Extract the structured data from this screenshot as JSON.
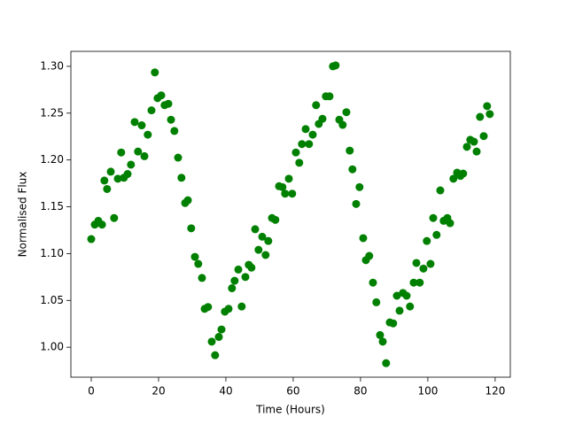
{
  "chart_data": {
    "type": "scatter",
    "xlabel": "Time (Hours)",
    "ylabel": "Normalised Flux",
    "color": "#008000",
    "x": [
      0,
      1.05,
      2.1,
      3.2,
      3.9,
      4.7,
      5.8,
      6.8,
      7.9,
      8.9,
      9.7,
      10.8,
      11.8,
      12.9,
      13.9,
      15,
      15.8,
      16.8,
      17.9,
      18.9,
      19.7,
      20.8,
      21.8,
      22.9,
      23.7,
      24.7,
      25.8,
      26.8,
      27.9,
      28.7,
      29.7,
      30.8,
      31.8,
      32.9,
      33.7,
      34.7,
      35.8,
      36.8,
      37.9,
      38.7,
      39.7,
      40.8,
      41.8,
      42.6,
      43.7,
      44.7,
      45.8,
      46.8,
      47.6,
      48.7,
      49.7,
      50.8,
      51.8,
      52.6,
      53.7,
      54.7,
      55.8,
      56.8,
      57.6,
      58.7,
      59.7,
      60.8,
      61.8,
      62.6,
      63.7,
      64.7,
      65.8,
      66.8,
      67.6,
      68.7,
      69.7,
      70.8,
      71.8,
      72.6,
      73.7,
      74.7,
      75.8,
      76.8,
      77.6,
      78.7,
      79.7,
      80.8,
      81.6,
      82.6,
      83.7,
      84.7,
      85.8,
      86.6,
      87.6,
      88.7,
      89.7,
      90.8,
      91.6,
      92.6,
      93.7,
      94.7,
      95.8,
      96.6,
      97.6,
      98.7,
      99.7,
      100.8,
      101.6,
      102.6,
      103.7,
      104.7,
      105.8,
      106.6,
      107.6,
      108.7,
      109.7,
      110.5,
      111.6,
      112.6,
      113.7,
      114.5,
      115.5,
      116.6,
      117.6,
      118.4
    ],
    "values": [
      1.1155,
      1.131,
      1.135,
      1.131,
      1.178,
      1.169,
      1.1875,
      1.138,
      1.18,
      1.208,
      1.181,
      1.185,
      1.195,
      1.2405,
      1.209,
      1.237,
      1.204,
      1.227,
      1.253,
      1.2935,
      1.266,
      1.269,
      1.2585,
      1.26,
      1.243,
      1.231,
      1.2025,
      1.181,
      1.154,
      1.157,
      1.127,
      1.0965,
      1.089,
      1.074,
      1.041,
      1.043,
      1.006,
      0.9915,
      1.011,
      1.019,
      1.038,
      1.041,
      1.063,
      1.071,
      1.083,
      1.0435,
      1.075,
      1.088,
      1.085,
      1.126,
      1.104,
      1.118,
      1.0985,
      1.1135,
      1.138,
      1.136,
      1.172,
      1.171,
      1.164,
      1.18,
      1.164,
      1.208,
      1.197,
      1.217,
      1.233,
      1.217,
      1.227,
      1.2585,
      1.2385,
      1.244,
      1.268,
      1.268,
      1.3,
      1.301,
      1.243,
      1.2375,
      1.251,
      1.21,
      1.19,
      1.153,
      1.171,
      1.1165,
      1.093,
      1.0975,
      1.069,
      1.048,
      1.013,
      1.006,
      0.983,
      1.0265,
      1.0255,
      1.055,
      1.039,
      1.058,
      1.055,
      1.0435,
      1.069,
      1.09,
      1.069,
      1.084,
      1.1135,
      1.089,
      1.138,
      1.12,
      1.1675,
      1.135,
      1.138,
      1.1325,
      1.18,
      1.1865,
      1.183,
      1.1855,
      1.214,
      1.2215,
      1.2195,
      1.209,
      1.246,
      1.2255,
      1.2575,
      1.249
    ],
    "xlim": [
      -6.05,
      124.5
    ],
    "xticks": [
      0,
      20,
      40,
      60,
      80,
      100,
      120
    ],
    "ylim": [
      0.968,
      1.316
    ],
    "yticks": [
      {
        "value": 1.0,
        "label": "1.00"
      },
      {
        "value": 1.05,
        "label": "1.05"
      },
      {
        "value": 1.1,
        "label": "1.10"
      },
      {
        "value": 1.15,
        "label": "1.15"
      },
      {
        "value": 1.2,
        "label": "1.20"
      },
      {
        "value": 1.25,
        "label": "1.25"
      },
      {
        "value": 1.3,
        "label": "1.30"
      }
    ],
    "grid": false
  }
}
